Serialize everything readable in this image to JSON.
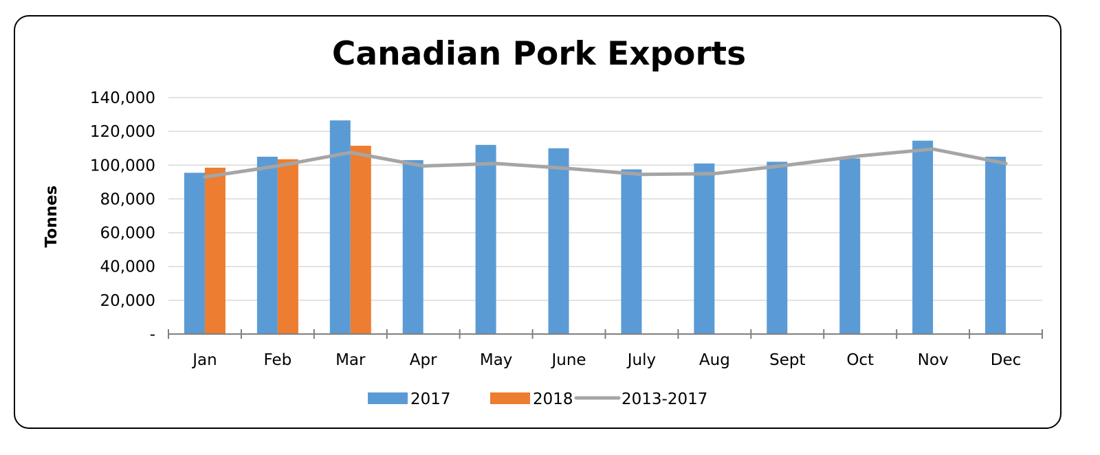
{
  "chart_data": {
    "type": "bar",
    "title": "Canadian Pork Exports",
    "xlabel": "",
    "ylabel": "Tonnes",
    "ylim": [
      0,
      140000
    ],
    "yticks": [
      0,
      20000,
      40000,
      60000,
      80000,
      100000,
      120000,
      140000
    ],
    "ytick_labels": [
      "-",
      "20,000",
      "40,000",
      "60,000",
      "80,000",
      "100,000",
      "120,000",
      "140,000"
    ],
    "grid": true,
    "legend": "bottom",
    "categories": [
      "Jan",
      "Feb",
      "Mar",
      "Apr",
      "May",
      "June",
      "July",
      "Aug",
      "Sept",
      "Oct",
      "Nov",
      "Dec"
    ],
    "series": [
      {
        "name": "2017",
        "type": "bar",
        "color": "#5B9BD5",
        "values": [
          95500,
          105000,
          126500,
          103000,
          112000,
          110000,
          97500,
          101000,
          102000,
          104000,
          114500,
          105000
        ]
      },
      {
        "name": "2018",
        "type": "bar",
        "color": "#ED7D31",
        "values": [
          98500,
          103500,
          111500,
          null,
          null,
          null,
          null,
          null,
          null,
          null,
          null,
          null
        ]
      },
      {
        "name": "2013-2017",
        "type": "line",
        "color": "#A5A5A5",
        "values": [
          93000,
          99500,
          107500,
          99500,
          101000,
          98000,
          94500,
          95000,
          100000,
          105500,
          109500,
          101000
        ]
      }
    ]
  }
}
